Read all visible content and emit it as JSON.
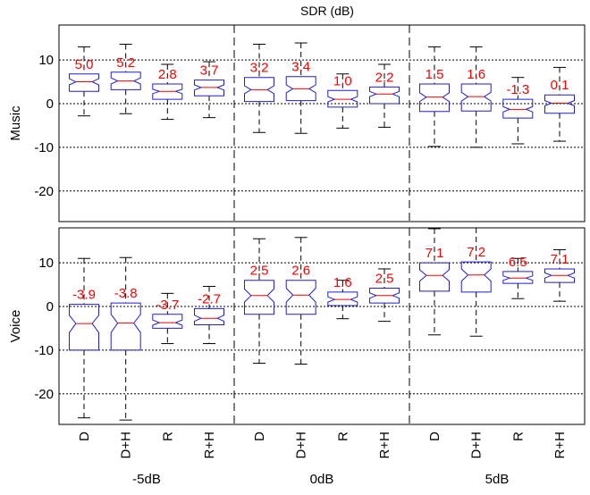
{
  "chart_data": {
    "type": "boxplot",
    "title": "SDR (dB)",
    "groups": [
      "-5dB",
      "0dB",
      "5dB"
    ],
    "methods": [
      "D",
      "D+H",
      "R",
      "R+H"
    ],
    "ylim": [
      -27,
      18
    ],
    "yticks": [
      10,
      0,
      -10,
      -20
    ],
    "ytick_labels": [
      "10",
      "0",
      "-10",
      "-20"
    ],
    "grid": true,
    "colors": {
      "box": "#1f1fd6",
      "median": "#ff0000",
      "label": "#ff0000",
      "whisker": "#000000",
      "grid": "#000000"
    },
    "panels": [
      {
        "ylabel": "Music",
        "boxes": [
          {
            "group": "-5dB",
            "method": "D",
            "label": "5.0",
            "median": 5.0,
            "q1": 2.8,
            "q3": 6.8,
            "notch_lo": 4.3,
            "notch_hi": 5.7,
            "wlo": -2.8,
            "whi": 13.0
          },
          {
            "group": "-5dB",
            "method": "D+H",
            "label": "5.2",
            "median": 5.2,
            "q1": 3.2,
            "q3": 7.2,
            "notch_lo": 4.5,
            "notch_hi": 5.9,
            "wlo": -2.3,
            "whi": 13.6
          },
          {
            "group": "-5dB",
            "method": "R",
            "label": "2.8",
            "median": 2.8,
            "q1": 1.0,
            "q3": 4.5,
            "notch_lo": 2.3,
            "notch_hi": 3.3,
            "wlo": -3.6,
            "whi": 9.0
          },
          {
            "group": "-5dB",
            "method": "R+H",
            "label": "3.7",
            "median": 3.7,
            "q1": 1.8,
            "q3": 5.4,
            "notch_lo": 3.1,
            "notch_hi": 4.3,
            "wlo": -3.2,
            "whi": 9.6
          },
          {
            "group": "0dB",
            "method": "D",
            "label": "3.2",
            "median": 3.2,
            "q1": 0.5,
            "q3": 6.0,
            "notch_lo": 2.3,
            "notch_hi": 4.1,
            "wlo": -6.6,
            "whi": 13.6
          },
          {
            "group": "0dB",
            "method": "D+H",
            "label": "3.4",
            "median": 3.4,
            "q1": 0.7,
            "q3": 6.2,
            "notch_lo": 2.5,
            "notch_hi": 4.3,
            "wlo": -6.8,
            "whi": 13.9
          },
          {
            "group": "0dB",
            "method": "R",
            "label": "1.0",
            "median": 1.0,
            "q1": -0.8,
            "q3": 3.0,
            "notch_lo": 0.4,
            "notch_hi": 1.6,
            "wlo": -5.6,
            "whi": 6.8
          },
          {
            "group": "0dB",
            "method": "R+H",
            "label": "2.2",
            "median": 2.2,
            "q1": 0.0,
            "q3": 3.8,
            "notch_lo": 1.6,
            "notch_hi": 2.8,
            "wlo": -5.4,
            "whi": 9.0
          },
          {
            "group": "5dB",
            "method": "D",
            "label": "1.5",
            "median": 1.5,
            "q1": -1.8,
            "q3": 4.5,
            "notch_lo": 0.5,
            "notch_hi": 2.5,
            "wlo": -9.8,
            "whi": 13.0
          },
          {
            "group": "5dB",
            "method": "D+H",
            "label": "1.6",
            "median": 1.6,
            "q1": -1.7,
            "q3": 4.5,
            "notch_lo": 0.6,
            "notch_hi": 2.6,
            "wlo": -10.0,
            "whi": 13.0
          },
          {
            "group": "5dB",
            "method": "R",
            "label": "-1.3",
            "median": -1.3,
            "q1": -3.3,
            "q3": 1.0,
            "notch_lo": -1.9,
            "notch_hi": -0.7,
            "wlo": -9.2,
            "whi": 6.0
          },
          {
            "group": "5dB",
            "method": "R+H",
            "label": "0.1",
            "median": 0.1,
            "q1": -2.2,
            "q3": 2.0,
            "notch_lo": -0.5,
            "notch_hi": 0.7,
            "wlo": -8.6,
            "whi": 8.3
          }
        ]
      },
      {
        "ylabel": "Voice",
        "boxes": [
          {
            "group": "-5dB",
            "method": "D",
            "label": "-3.9",
            "median": -3.9,
            "q1": -10.0,
            "q3": 0.5,
            "notch_lo": -6.0,
            "notch_hi": -2.0,
            "wlo": -25.5,
            "whi": 11.0
          },
          {
            "group": "-5dB",
            "method": "D+H",
            "label": "-3.8",
            "median": -3.8,
            "q1": -10.0,
            "q3": 0.8,
            "notch_lo": -6.0,
            "notch_hi": -1.8,
            "wlo": -26.0,
            "whi": 11.2
          },
          {
            "group": "-5dB",
            "method": "R",
            "label": "-3.7",
            "median": -3.7,
            "q1": -5.0,
            "q3": -1.8,
            "notch_lo": -4.3,
            "notch_hi": -3.1,
            "wlo": -8.5,
            "whi": 3.0
          },
          {
            "group": "-5dB",
            "method": "R+H",
            "label": "-2.7",
            "median": -2.7,
            "q1": -4.2,
            "q3": -0.5,
            "notch_lo": -3.4,
            "notch_hi": -2.0,
            "wlo": -8.5,
            "whi": 4.6
          },
          {
            "group": "0dB",
            "method": "D",
            "label": "2.5",
            "median": 2.5,
            "q1": -1.8,
            "q3": 6.0,
            "notch_lo": 1.0,
            "notch_hi": 4.0,
            "wlo": -13.0,
            "whi": 15.5
          },
          {
            "group": "0dB",
            "method": "D+H",
            "label": "2.6",
            "median": 2.6,
            "q1": -1.8,
            "q3": 6.0,
            "notch_lo": 1.0,
            "notch_hi": 4.2,
            "wlo": -13.2,
            "whi": 15.8
          },
          {
            "group": "0dB",
            "method": "R",
            "label": "1.6",
            "median": 1.6,
            "q1": 0.2,
            "q3": 3.3,
            "notch_lo": 1.0,
            "notch_hi": 2.2,
            "wlo": -2.8,
            "whi": 6.0
          },
          {
            "group": "0dB",
            "method": "R+H",
            "label": "2.5",
            "median": 2.5,
            "q1": 0.8,
            "q3": 4.2,
            "notch_lo": 1.9,
            "notch_hi": 3.1,
            "wlo": -3.4,
            "whi": 8.6
          },
          {
            "group": "5dB",
            "method": "D",
            "label": "7.1",
            "median": 7.1,
            "q1": 3.5,
            "q3": 10.0,
            "notch_lo": 5.8,
            "notch_hi": 8.4,
            "wlo": -6.5,
            "whi": 17.8
          },
          {
            "group": "5dB",
            "method": "D+H",
            "label": "7.2",
            "median": 7.2,
            "q1": 3.3,
            "q3": 10.2,
            "notch_lo": 5.8,
            "notch_hi": 8.6,
            "wlo": -6.8,
            "whi": 18.0
          },
          {
            "group": "5dB",
            "method": "R",
            "label": "6.5",
            "median": 6.5,
            "q1": 5.3,
            "q3": 8.0,
            "notch_lo": 6.0,
            "notch_hi": 7.0,
            "wlo": 1.8,
            "whi": 11.0
          },
          {
            "group": "5dB",
            "method": "R+H",
            "label": "7.1",
            "median": 7.1,
            "q1": 5.5,
            "q3": 8.6,
            "notch_lo": 6.5,
            "notch_hi": 7.7,
            "wlo": 1.2,
            "whi": 13.0
          }
        ]
      }
    ]
  }
}
